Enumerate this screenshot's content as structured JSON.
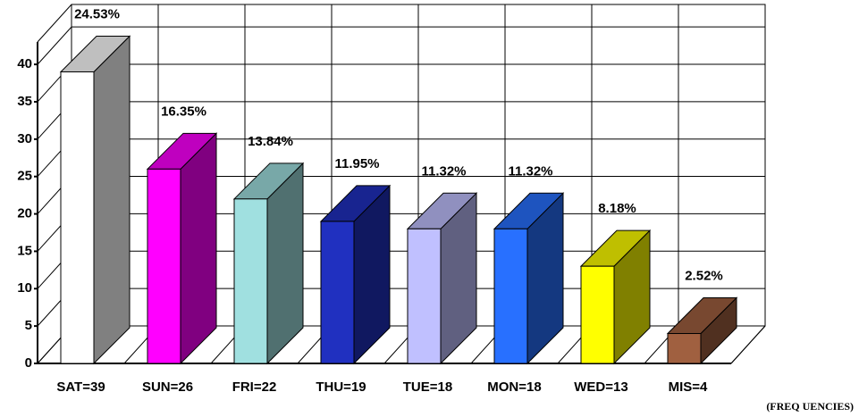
{
  "chart_data": {
    "type": "bar3d",
    "categories": [
      "SAT=39",
      "SUN=26",
      "FRI=22",
      "THU=19",
      "TUE=18",
      "MON=18",
      "WED=13",
      "MIS=4"
    ],
    "values": [
      39,
      26,
      22,
      19,
      18,
      18,
      13,
      4
    ],
    "percent_labels": [
      "24.53%",
      "16.35%",
      "13.84%",
      "11.95%",
      "11.32%",
      "11.32%",
      "8.18%",
      "2.52%"
    ],
    "colors": [
      "#ffffff",
      "#ff00ff",
      "#a0e0e0",
      "#2030c0",
      "#c0c0ff",
      "#2870ff",
      "#ffff00",
      "#a06040"
    ],
    "ylim": [
      0,
      43
    ],
    "yticks": [
      0,
      5,
      10,
      15,
      20,
      25,
      30,
      35,
      40
    ],
    "grid": true,
    "x_label": "(FREQ UENCIES)"
  }
}
